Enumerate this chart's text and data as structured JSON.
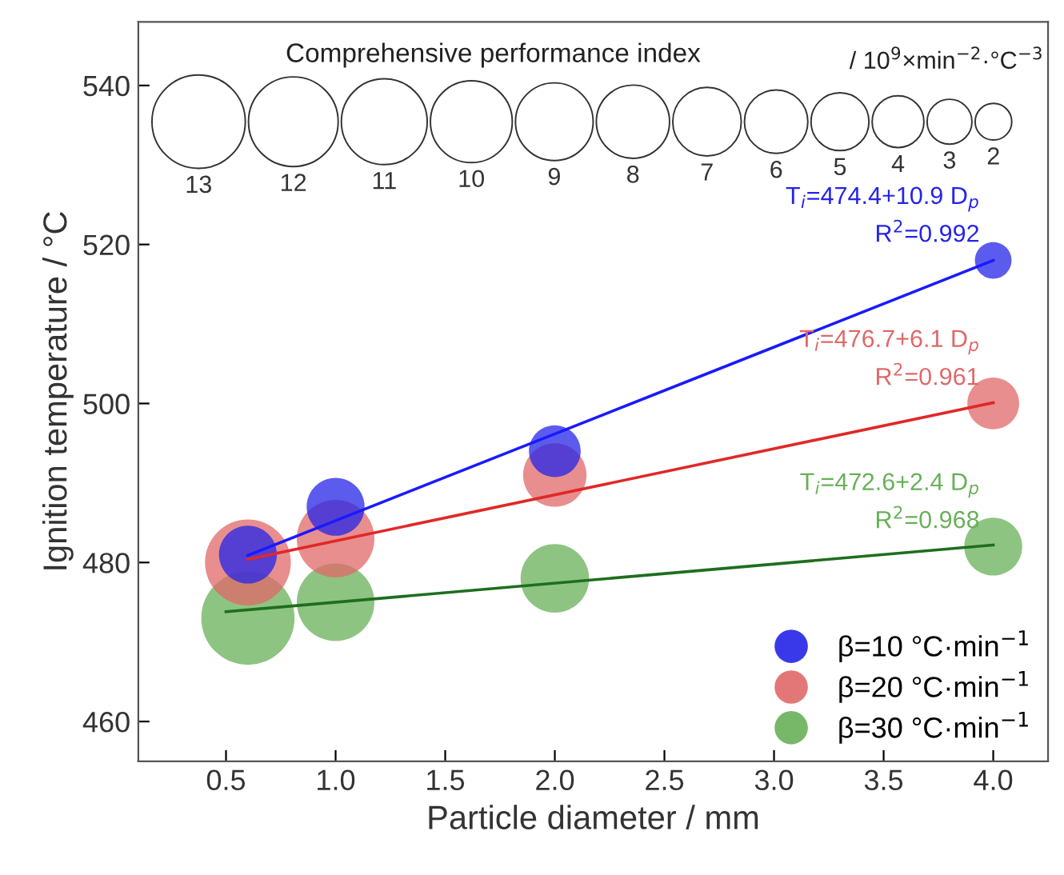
{
  "chart_data": {
    "type": "bubble",
    "xlabel": "Particle diameter / mm",
    "ylabel": "Ignition temperature / °C",
    "legend_title": "Comprehensive performance index",
    "size_legend": [
      13,
      12,
      11,
      10,
      9,
      8,
      7,
      6,
      5,
      4,
      3,
      2
    ],
    "xlim": [
      0.1,
      4.25
    ],
    "ylim": [
      455,
      548
    ],
    "xticks": [
      0.5,
      {
        "value": 1,
        "label": "1.0"
      },
      1.5,
      {
        "value": 2,
        "label": "2.0"
      },
      2.5,
      {
        "value": 3,
        "label": "3.0"
      },
      3.5,
      {
        "value": 4,
        "label": "4.0"
      }
    ],
    "yticks": [
      460,
      480,
      500,
      520,
      540
    ],
    "grid": false,
    "legend": "bottom right",
    "marker": "circle",
    "series": [
      {
        "name": "β=10 °C·min$^{−1}$",
        "color": "#2424e8",
        "x": [
          0.6,
          1.0,
          2.0,
          4.0
        ],
        "values": [
          481,
          487,
          494,
          518
        ],
        "sizes": [
          5,
          5,
          4,
          2
        ]
      },
      {
        "name": "β=20 °C·min$^{−1}$",
        "color": "#e06868",
        "x": [
          0.6,
          1.0,
          2.0,
          4.0
        ],
        "values": [
          480,
          483,
          491,
          500
        ],
        "sizes": [
          11,
          9,
          6,
          4
        ]
      },
      {
        "name": "β=30 °C·min$^{−1}$",
        "color": "#68b058",
        "x": [
          0.6,
          1.0,
          2.0,
          4.0
        ],
        "values": [
          473,
          475,
          478,
          482
        ],
        "sizes": [
          13,
          9,
          7,
          5
        ]
      },
      {
        "type": "line",
        "marker": "none",
        "color": "#1a1aff",
        "x": [
          0.6,
          4.0
        ],
        "values": [
          480.9,
          518.0
        ]
      },
      {
        "type": "line",
        "marker": "none",
        "color": "#e02828",
        "x": [
          0.6,
          4.0
        ],
        "values": [
          480.4,
          500.1
        ]
      },
      {
        "type": "line",
        "marker": "none",
        "color": "#1e6e1e",
        "x": [
          0.5,
          4.0
        ],
        "values": [
          473.8,
          482.2
        ]
      }
    ],
    "annotations": [
      "T$_{i}$=474.4+10.9 D$_{p}$\nR$^{2}$=0.992",
      "T$_{i}$=476.7+6.1 D$_{p}$\nR$^{2}$=0.961",
      "T$_{i}$=472.6+2.4 D$_{p}$\nR$^{2}$=0.968",
      "/ 10$^{9}$×min$^{−2}$·°C$^{−3}$"
    ]
  }
}
